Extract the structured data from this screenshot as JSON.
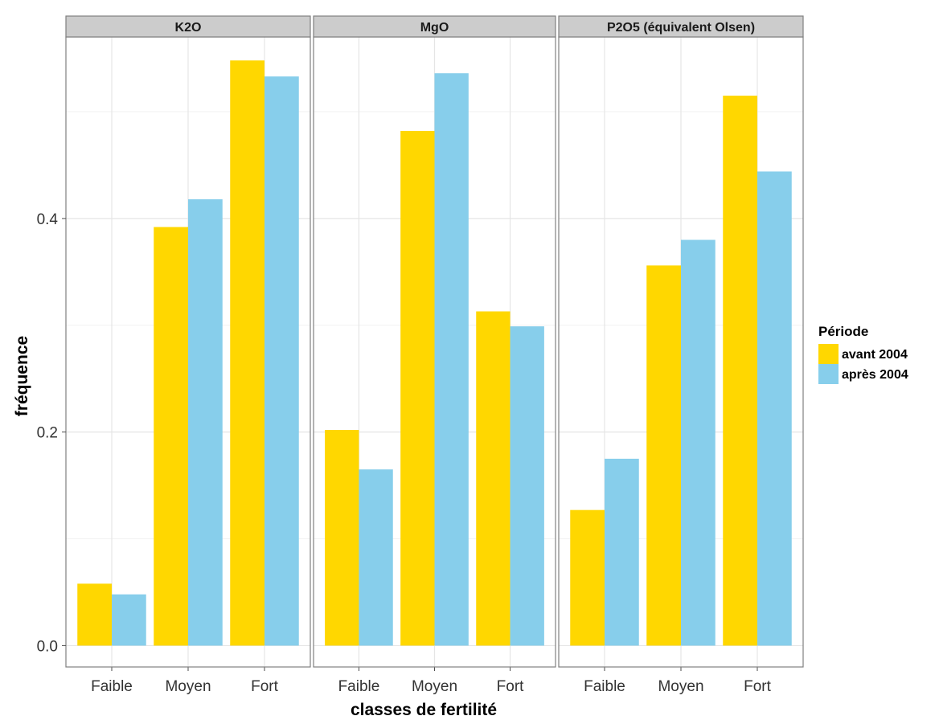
{
  "chart_data": {
    "type": "bar",
    "facets": [
      {
        "name": "K2O",
        "series": [
          {
            "name": "avant 2004",
            "values": [
              0.058,
              0.392,
              0.548
            ]
          },
          {
            "name": "après 2004",
            "values": [
              0.048,
              0.418,
              0.533
            ]
          }
        ]
      },
      {
        "name": "MgO",
        "series": [
          {
            "name": "avant 2004",
            "values": [
              0.202,
              0.482,
              0.313
            ]
          },
          {
            "name": "après 2004",
            "values": [
              0.165,
              0.536,
              0.299
            ]
          }
        ]
      },
      {
        "name": "P2O5 (équivalent Olsen)",
        "series": [
          {
            "name": "avant 2004",
            "values": [
              0.127,
              0.356,
              0.515
            ]
          },
          {
            "name": "après 2004",
            "values": [
              0.175,
              0.38,
              0.444
            ]
          }
        ]
      }
    ],
    "categories": [
      "Faible",
      "Moyen",
      "Fort"
    ],
    "xlabel": "classes de fertilité",
    "ylabel": "fréquence",
    "ylim": [
      -0.02,
      0.57
    ],
    "yticks": [
      0.0,
      0.2,
      0.4
    ],
    "ytick_labels": [
      "0.0",
      "0.2",
      "0.4"
    ],
    "grid": true,
    "legend": {
      "title": "Période",
      "position": "right",
      "entries": [
        "avant 2004",
        "après 2004"
      ]
    },
    "colors": {
      "avant 2004": "#FFD700",
      "après 2004": "#87CEEB"
    }
  }
}
